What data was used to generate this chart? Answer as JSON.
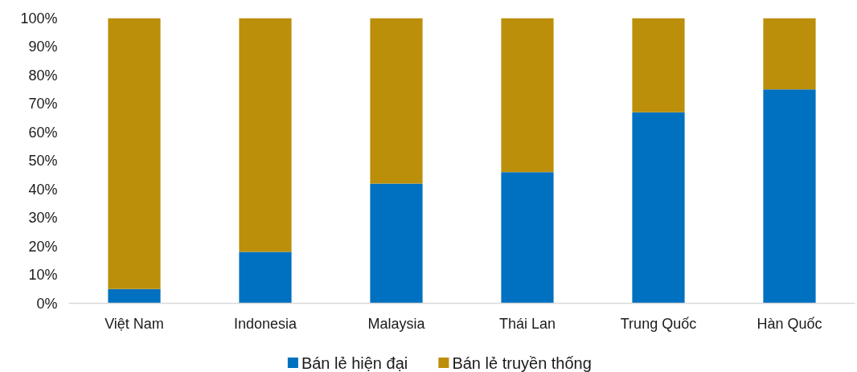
{
  "chart_data": {
    "type": "bar",
    "stacked": true,
    "categories": [
      "Việt Nam",
      "Indonesia",
      "Malaysia",
      "Thái Lan",
      "Trung Quốc",
      "Hàn Quốc"
    ],
    "series": [
      {
        "name": "Bán lẻ hiện đại",
        "color": "#0070c0",
        "values": [
          5,
          18,
          42,
          46,
          67,
          75
        ]
      },
      {
        "name": "Bán lẻ truyền thống",
        "color": "#bc8f0b",
        "values": [
          95,
          82,
          58,
          54,
          33,
          25
        ]
      }
    ],
    "ylim": [
      0,
      100
    ],
    "yticks": [
      {
        "value": 0,
        "label": "0%"
      },
      {
        "value": 10,
        "label": "10%"
      },
      {
        "value": 20,
        "label": "20%"
      },
      {
        "value": 30,
        "label": "30%"
      },
      {
        "value": 40,
        "label": "40%"
      },
      {
        "value": 50,
        "label": "50%"
      },
      {
        "value": 60,
        "label": "60%"
      },
      {
        "value": 70,
        "label": "70%"
      },
      {
        "value": 80,
        "label": "80%"
      },
      {
        "value": 90,
        "label": "90%"
      },
      {
        "value": 100,
        "label": "100%"
      }
    ],
    "grid": false,
    "legend": "bottom"
  }
}
